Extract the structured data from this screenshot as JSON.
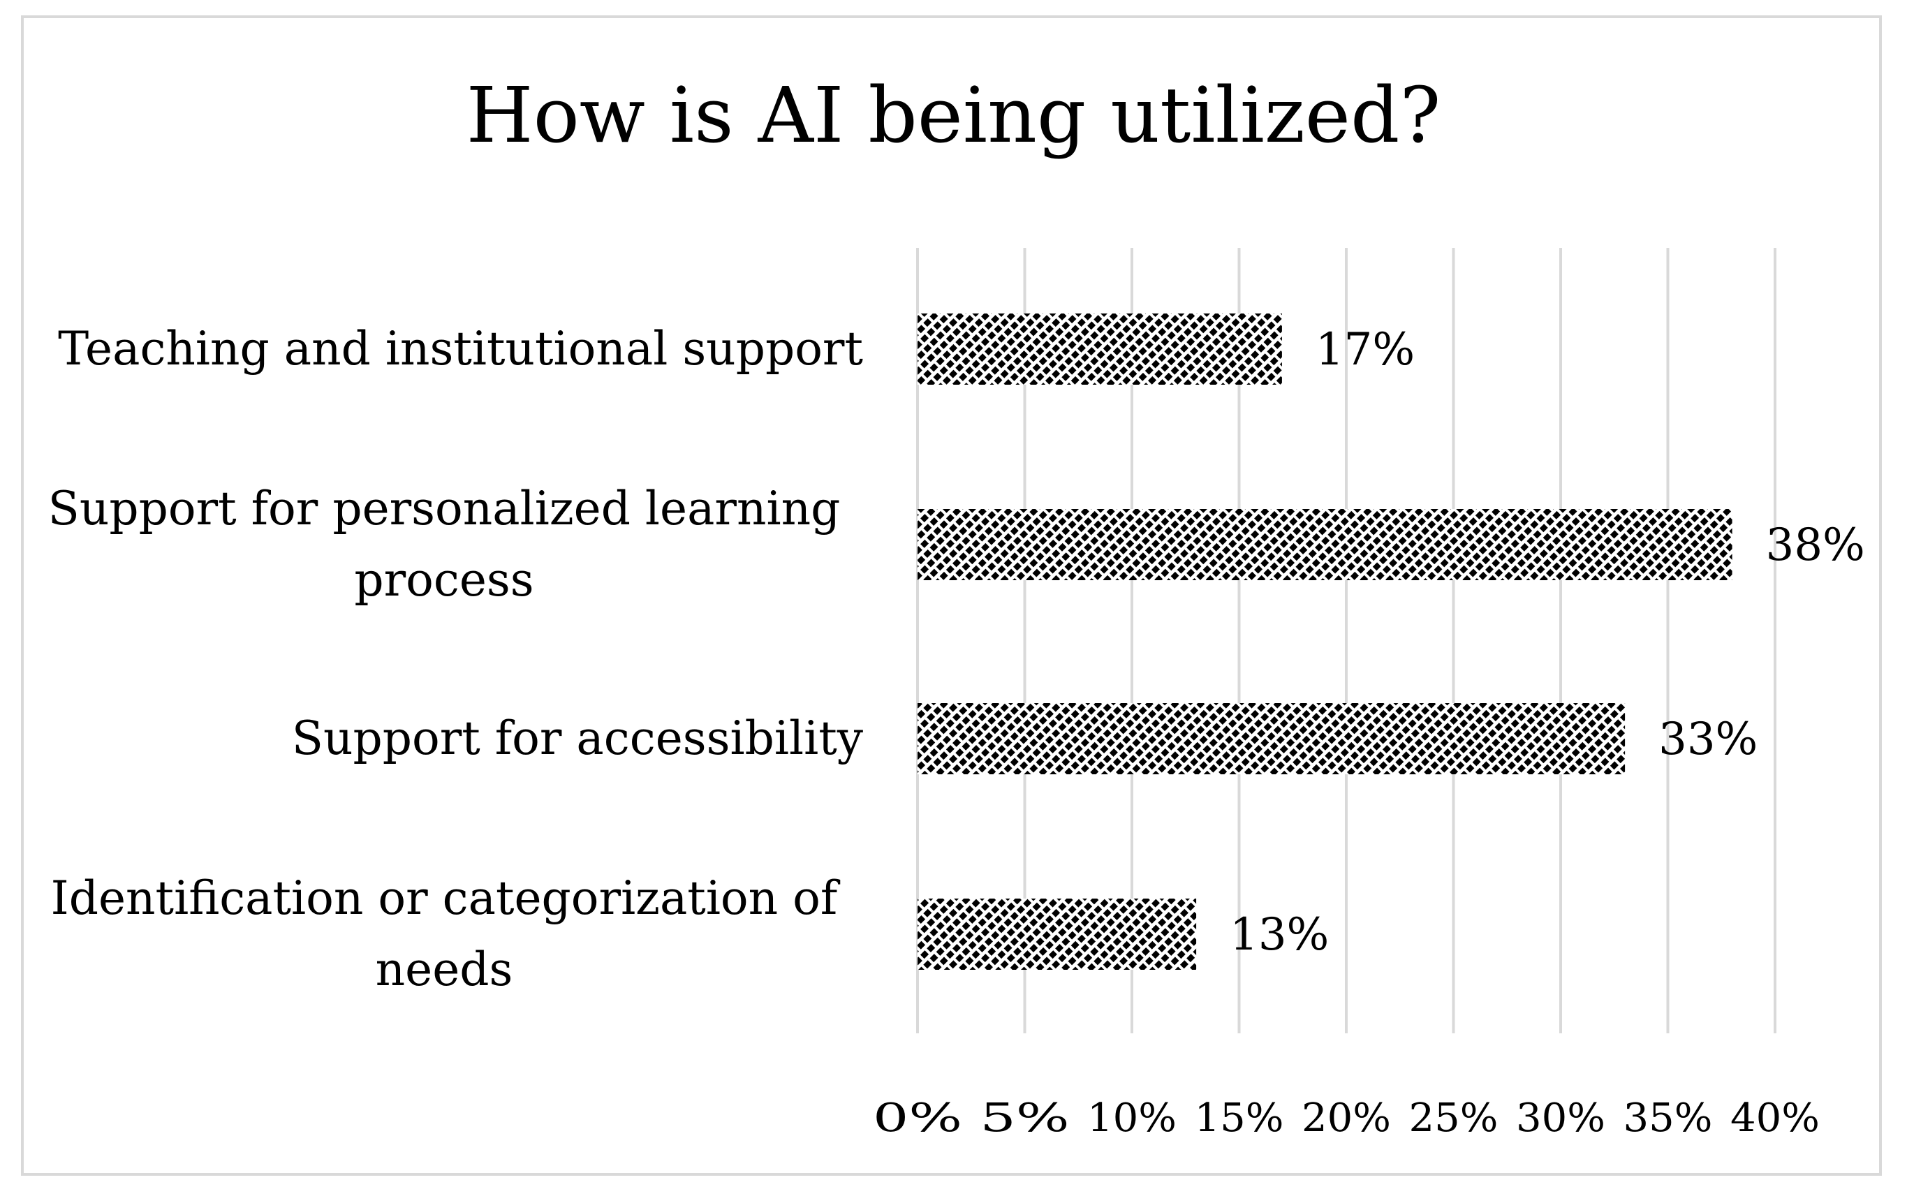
{
  "chart_data": {
    "type": "bar",
    "orientation": "horizontal",
    "title": "How is AI being utilized?",
    "categories": [
      "Teaching and institutional support",
      "Support for personalized learning process",
      "Support for accessibility",
      "Identification or categorization of needs"
    ],
    "category_lines": [
      [
        "Teaching and institutional support"
      ],
      [
        "Support for personalized learning",
        "process"
      ],
      [
        "Support for accessibility"
      ],
      [
        "Identification or categorization of",
        "needs"
      ]
    ],
    "values": [
      17,
      38,
      33,
      13
    ],
    "data_labels": [
      "17%",
      "38%",
      "33%",
      "13%"
    ],
    "xlim": [
      0,
      40
    ],
    "xticks": [
      "0%",
      "5%",
      "10%",
      "15%",
      "20%",
      "25%",
      "30%",
      "35%",
      "40%"
    ],
    "grid": true,
    "legend": "none",
    "bar_fill": "diagonal-hatch",
    "colors": {
      "bar_hatch": "#000000",
      "gridline": "#d9d9d9",
      "frame": "#d9d9d9"
    }
  }
}
